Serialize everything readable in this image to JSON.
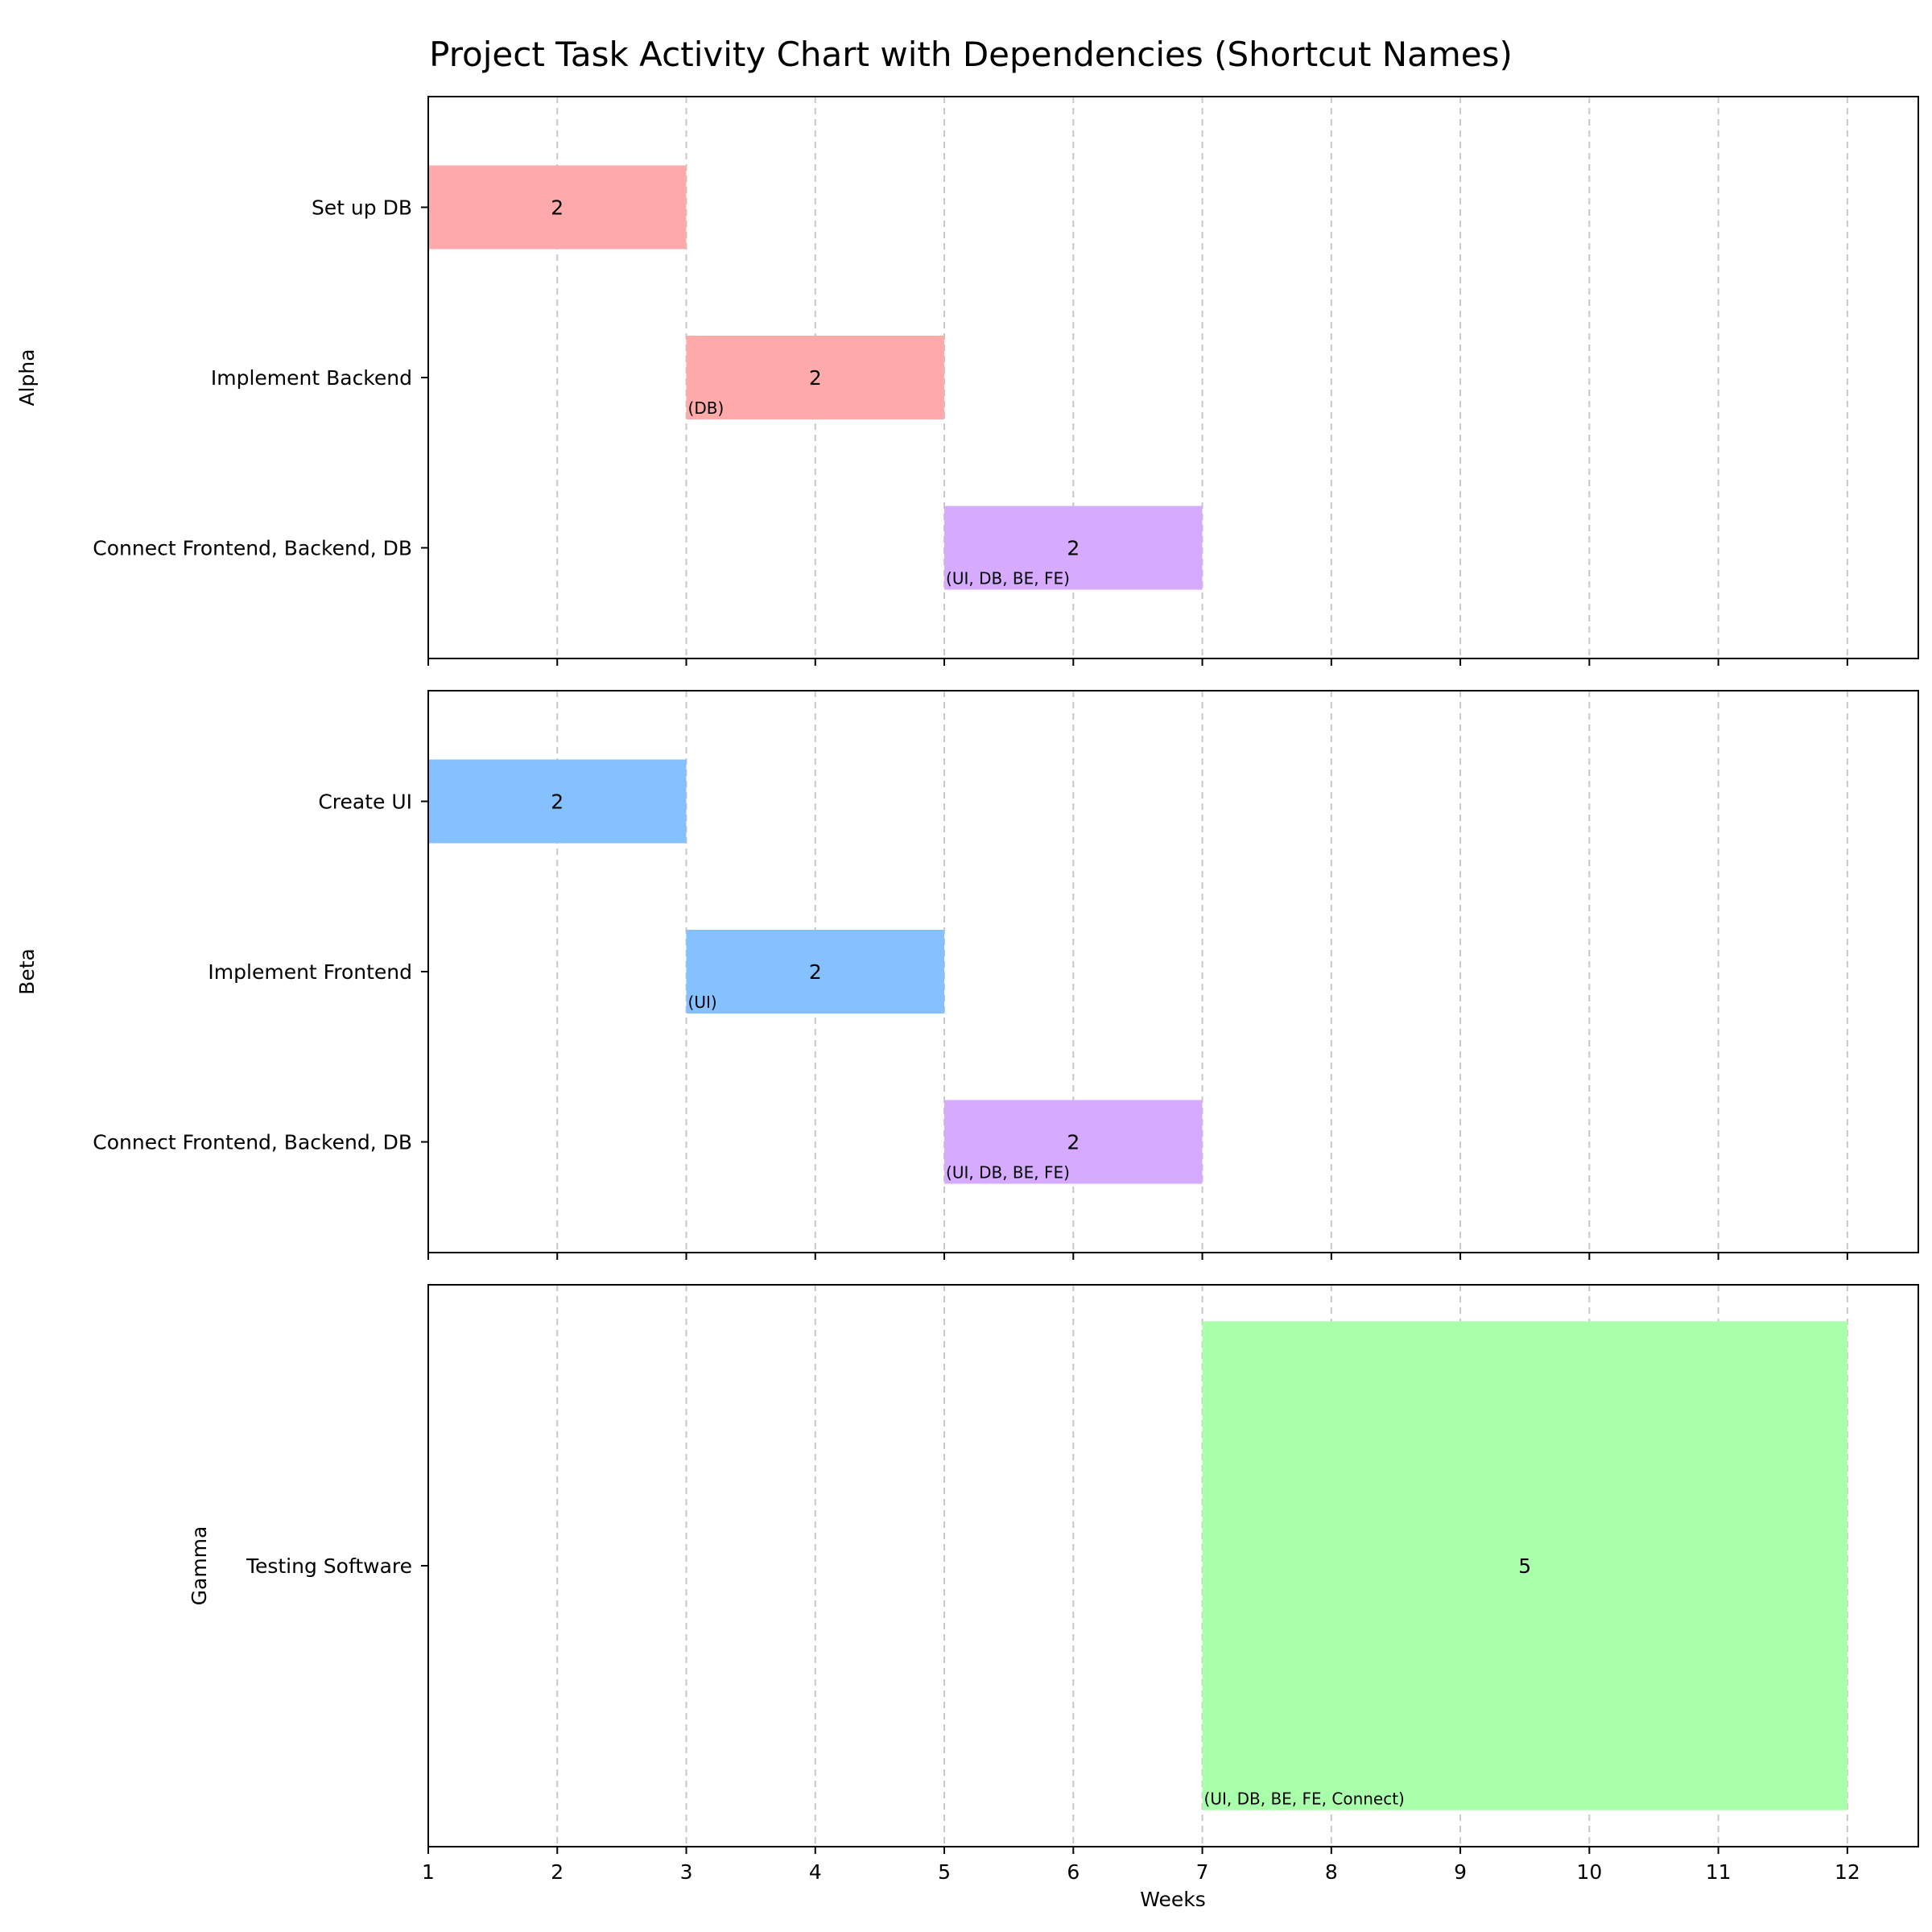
{
  "chart_data": {
    "type": "gantt",
    "title": "Project Task Activity Chart with Dependencies (Shortcut Names)",
    "xlabel": "Weeks",
    "xlim": [
      1,
      12.55
    ],
    "xticks": [
      1,
      2,
      3,
      4,
      5,
      6,
      7,
      8,
      9,
      10,
      11,
      12
    ],
    "grid": "vertical dashed",
    "colors": {
      "alpha": "#ffaaaa",
      "beta": "#85c1ff",
      "connect": "#d5aaff",
      "testing": "#aaffaa",
      "grid": "#c8c8c8"
    },
    "panels": [
      {
        "name": "Alpha",
        "tasks": [
          {
            "label": "Set up DB",
            "start": 1,
            "duration": 2,
            "deps": "",
            "color": "#ffaaaa"
          },
          {
            "label": "Implement Backend",
            "start": 3,
            "duration": 2,
            "deps": "(DB)",
            "color": "#ffaaaa"
          },
          {
            "label": "Connect Frontend, Backend, DB",
            "start": 5,
            "duration": 2,
            "deps": "(UI, DB, BE, FE)",
            "color": "#d5aaff"
          }
        ]
      },
      {
        "name": "Beta",
        "tasks": [
          {
            "label": "Create UI",
            "start": 1,
            "duration": 2,
            "deps": "",
            "color": "#85c1ff"
          },
          {
            "label": "Implement Frontend",
            "start": 3,
            "duration": 2,
            "deps": "(UI)",
            "color": "#85c1ff"
          },
          {
            "label": "Connect Frontend, Backend, DB",
            "start": 5,
            "duration": 2,
            "deps": "(UI, DB, BE, FE)",
            "color": "#d5aaff"
          }
        ]
      },
      {
        "name": "Gamma",
        "tasks": [
          {
            "label": "Testing Software",
            "start": 7,
            "duration": 5,
            "deps": "(UI, DB, BE, FE, Connect)",
            "color": "#aaffaa"
          }
        ]
      }
    ]
  }
}
